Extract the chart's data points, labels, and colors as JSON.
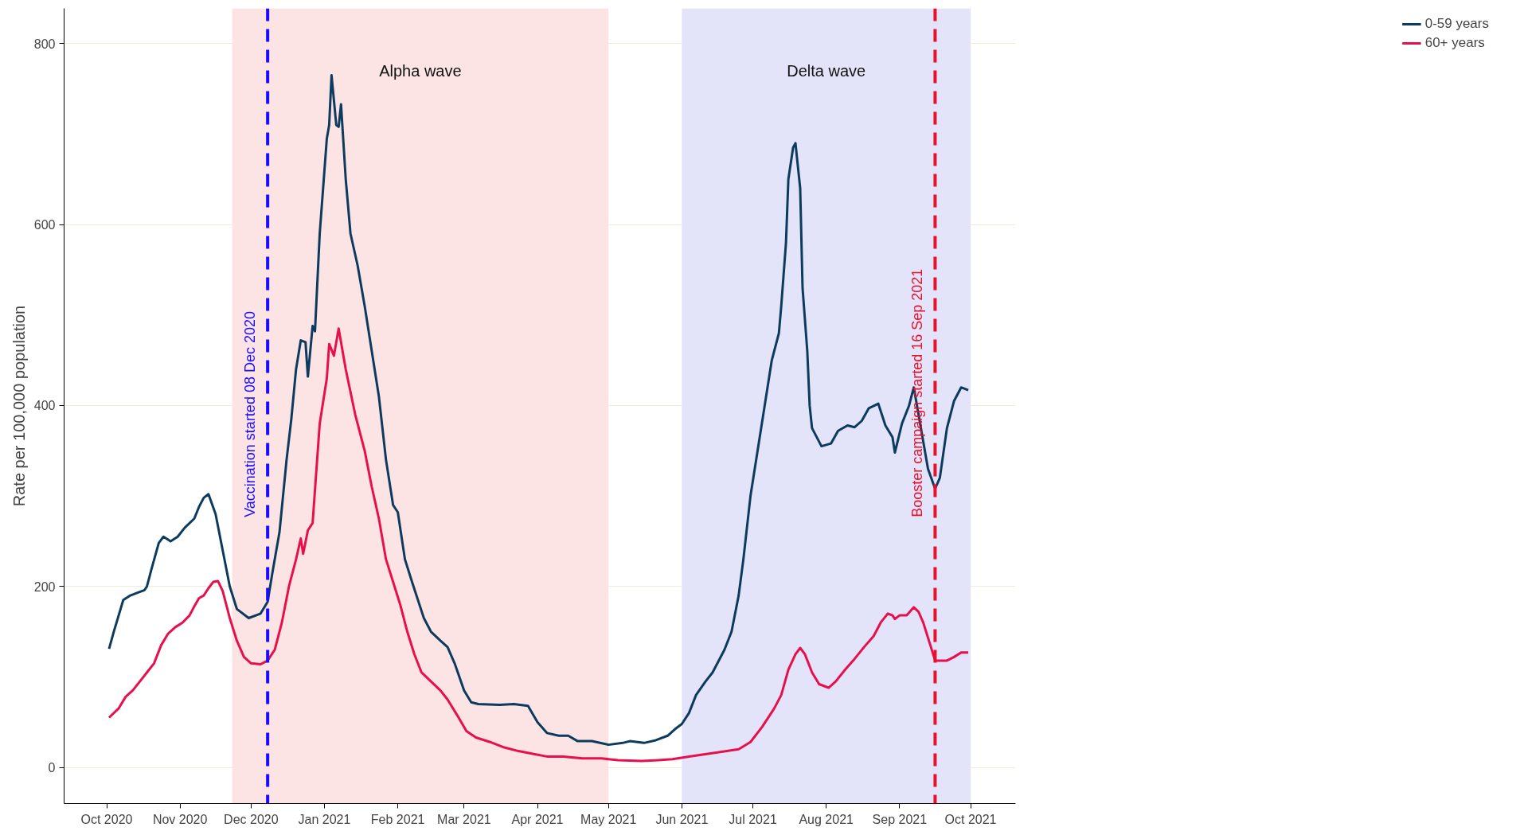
{
  "chart_data": {
    "type": "line",
    "ylabel": "Rate per 100,000 population",
    "xlim": [
      "2020-09-13",
      "2021-10-20"
    ],
    "ylim": [
      -40,
      839
    ],
    "yticks": [
      0,
      200,
      400,
      600,
      800
    ],
    "xticks": [
      {
        "value": "2020-10-01",
        "label": "Oct 2020"
      },
      {
        "value": "2020-11-01",
        "label": "Nov 2020"
      },
      {
        "value": "2020-12-01",
        "label": "Dec 2020"
      },
      {
        "value": "2021-01-01",
        "label": "Jan 2021"
      },
      {
        "value": "2021-02-01",
        "label": "Feb 2021"
      },
      {
        "value": "2021-03-01",
        "label": "Mar 2021"
      },
      {
        "value": "2021-04-01",
        "label": "Apr 2021"
      },
      {
        "value": "2021-05-01",
        "label": "May 2021"
      },
      {
        "value": "2021-06-01",
        "label": "Jun 2021"
      },
      {
        "value": "2021-07-01",
        "label": "Jul 2021"
      },
      {
        "value": "2021-08-01",
        "label": "Aug 2021"
      },
      {
        "value": "2021-09-01",
        "label": "Sep 2021"
      },
      {
        "value": "2021-10-01",
        "label": "Oct 2021"
      }
    ],
    "grid": "y",
    "legend": "right",
    "line_style": "solid",
    "bands": [
      {
        "axis": "x",
        "from": "2020-11-23",
        "to": "2021-05-01",
        "label": "Alpha wave",
        "color": "#fce4e4"
      },
      {
        "axis": "x",
        "from": "2021-06-01",
        "to": "2021-10-01",
        "label": "Delta wave",
        "color": "#e3e3fa"
      }
    ],
    "ref_lines": [
      {
        "axis": "x",
        "value": "2020-12-08",
        "label": "Vaccination started 08 Dec 2020",
        "color": "#1a0dff",
        "line_style": "dashed"
      },
      {
        "axis": "x",
        "value": "2021-09-16",
        "label": "Booster campaign started 16 Sep 2021",
        "color": "#e8102a",
        "line_style": "dashed"
      }
    ],
    "series": [
      {
        "name": "0-59 years",
        "color": "#0d3b5e",
        "x": [
          "2020-10-02",
          "2020-10-04",
          "2020-10-08",
          "2020-10-11",
          "2020-10-14",
          "2020-10-17",
          "2020-10-18",
          "2020-10-20",
          "2020-10-23",
          "2020-10-25",
          "2020-10-28",
          "2020-10-31",
          "2020-11-03",
          "2020-11-07",
          "2020-11-09",
          "2020-11-11",
          "2020-11-13",
          "2020-11-16",
          "2020-11-19",
          "2020-11-22",
          "2020-11-25",
          "2020-11-30",
          "2020-12-05",
          "2020-12-08",
          "2020-12-10",
          "2020-12-13",
          "2020-12-16",
          "2020-12-18",
          "2020-12-20",
          "2020-12-22",
          "2020-12-24",
          "2020-12-25",
          "2020-12-27",
          "2020-12-28",
          "2020-12-30",
          "2021-01-02",
          "2021-01-03",
          "2021-01-04",
          "2021-01-06",
          "2021-01-07",
          "2021-01-08",
          "2021-01-10",
          "2021-01-12",
          "2021-01-15",
          "2021-01-18",
          "2021-01-21",
          "2021-01-24",
          "2021-01-27",
          "2021-01-30",
          "2021-02-01",
          "2021-02-04",
          "2021-02-07",
          "2021-02-12",
          "2021-02-15",
          "2021-02-19",
          "2021-02-22",
          "2021-02-25",
          "2021-03-01",
          "2021-03-04",
          "2021-03-07",
          "2021-03-16",
          "2021-03-22",
          "2021-03-28",
          "2021-04-01",
          "2021-04-05",
          "2021-04-10",
          "2021-04-14",
          "2021-04-18",
          "2021-04-24",
          "2021-05-01",
          "2021-05-07",
          "2021-05-10",
          "2021-05-16",
          "2021-05-21",
          "2021-05-26",
          "2021-05-29",
          "2021-06-01",
          "2021-06-04",
          "2021-06-07",
          "2021-06-11",
          "2021-06-14",
          "2021-06-19",
          "2021-06-22",
          "2021-06-25",
          "2021-06-27",
          "2021-06-30",
          "2021-07-03",
          "2021-07-06",
          "2021-07-09",
          "2021-07-12",
          "2021-07-13",
          "2021-07-15",
          "2021-07-16",
          "2021-07-18",
          "2021-07-19",
          "2021-07-21",
          "2021-07-22",
          "2021-07-24",
          "2021-07-25",
          "2021-07-26",
          "2021-07-30",
          "2021-08-03",
          "2021-08-06",
          "2021-08-10",
          "2021-08-13",
          "2021-08-16",
          "2021-08-19",
          "2021-08-23",
          "2021-08-26",
          "2021-08-29",
          "2021-08-30",
          "2021-09-02",
          "2021-09-05",
          "2021-09-07",
          "2021-09-10",
          "2021-09-13",
          "2021-09-16",
          "2021-09-18",
          "2021-09-21",
          "2021-09-24",
          "2021-09-27",
          "2021-09-30"
        ],
        "values": [
          131,
          150,
          185,
          190,
          193,
          196,
          200,
          220,
          248,
          255,
          250,
          255,
          265,
          275,
          288,
          298,
          302,
          280,
          240,
          200,
          175,
          165,
          170,
          183,
          215,
          260,
          340,
          385,
          440,
          472,
          470,
          432,
          488,
          482,
          590,
          695,
          710,
          765,
          710,
          708,
          733,
          650,
          590,
          555,
          510,
          460,
          410,
          340,
          290,
          282,
          230,
          205,
          165,
          150,
          140,
          133,
          115,
          85,
          72,
          70,
          69,
          70,
          68,
          50,
          38,
          35,
          35,
          29,
          29,
          25,
          27,
          29,
          27,
          30,
          35,
          42,
          48,
          60,
          80,
          95,
          105,
          130,
          150,
          190,
          230,
          300,
          350,
          400,
          450,
          480,
          510,
          580,
          650,
          685,
          690,
          640,
          530,
          460,
          400,
          375,
          355,
          358,
          372,
          378,
          376,
          383,
          397,
          402,
          378,
          365,
          348,
          380,
          400,
          420,
          375,
          330,
          308,
          320,
          375,
          405,
          420,
          417
        ]
      },
      {
        "name": "60+ years",
        "color": "#e8104a",
        "x": [
          "2020-10-02",
          "2020-10-06",
          "2020-10-09",
          "2020-10-12",
          "2020-10-15",
          "2020-10-18",
          "2020-10-21",
          "2020-10-24",
          "2020-10-27",
          "2020-10-30",
          "2020-11-02",
          "2020-11-05",
          "2020-11-07",
          "2020-11-09",
          "2020-11-11",
          "2020-11-13",
          "2020-11-15",
          "2020-11-17",
          "2020-11-19",
          "2020-11-22",
          "2020-11-25",
          "2020-11-28",
          "2020-12-01",
          "2020-12-05",
          "2020-12-08",
          "2020-12-11",
          "2020-12-14",
          "2020-12-17",
          "2020-12-20",
          "2020-12-22",
          "2020-12-23",
          "2020-12-25",
          "2020-12-27",
          "2020-12-30",
          "2021-01-02",
          "2021-01-03",
          "2021-01-05",
          "2021-01-07",
          "2021-01-10",
          "2021-01-14",
          "2021-01-18",
          "2021-01-21",
          "2021-01-24",
          "2021-01-27",
          "2021-01-30",
          "2021-02-02",
          "2021-02-05",
          "2021-02-08",
          "2021-02-11",
          "2021-02-15",
          "2021-02-19",
          "2021-02-22",
          "2021-02-26",
          "2021-03-02",
          "2021-03-06",
          "2021-03-12",
          "2021-03-18",
          "2021-03-24",
          "2021-03-30",
          "2021-04-05",
          "2021-04-12",
          "2021-04-20",
          "2021-04-28",
          "2021-05-05",
          "2021-05-15",
          "2021-05-22",
          "2021-05-28",
          "2021-06-04",
          "2021-06-12",
          "2021-06-20",
          "2021-06-25",
          "2021-06-30",
          "2021-07-05",
          "2021-07-10",
          "2021-07-13",
          "2021-07-16",
          "2021-07-19",
          "2021-07-21",
          "2021-07-23",
          "2021-07-26",
          "2021-07-29",
          "2021-08-02",
          "2021-08-05",
          "2021-08-09",
          "2021-08-13",
          "2021-08-17",
          "2021-08-21",
          "2021-08-24",
          "2021-08-27",
          "2021-08-29",
          "2021-08-30",
          "2021-09-01",
          "2021-09-04",
          "2021-09-07",
          "2021-09-09",
          "2021-09-11",
          "2021-09-14",
          "2021-09-16",
          "2021-09-18",
          "2021-09-21",
          "2021-09-24",
          "2021-09-27",
          "2021-09-30"
        ],
        "values": [
          55,
          65,
          78,
          85,
          95,
          105,
          115,
          135,
          148,
          155,
          160,
          168,
          178,
          187,
          190,
          198,
          205,
          206,
          195,
          165,
          140,
          122,
          115,
          114,
          118,
          130,
          160,
          200,
          230,
          253,
          236,
          262,
          270,
          380,
          430,
          468,
          455,
          485,
          440,
          390,
          350,
          310,
          275,
          230,
          205,
          180,
          150,
          125,
          105,
          95,
          85,
          75,
          58,
          40,
          33,
          28,
          22,
          18,
          15,
          12,
          12,
          10,
          10,
          8,
          7,
          8,
          9,
          12,
          15,
          18,
          20,
          28,
          45,
          65,
          80,
          108,
          125,
          132,
          125,
          105,
          92,
          88,
          95,
          108,
          120,
          133,
          145,
          160,
          170,
          168,
          164,
          168,
          168,
          177,
          172,
          160,
          135,
          118,
          118,
          118,
          122,
          127,
          127
        ]
      }
    ]
  }
}
